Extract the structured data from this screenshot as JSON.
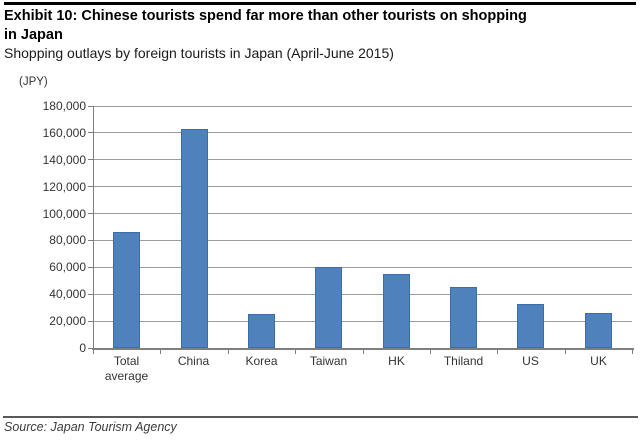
{
  "page": {
    "title_line1": "Exhibit 10: Chinese tourists spend far more than other tourists on shopping",
    "title_line2": "in Japan",
    "subtitle": "Shopping outlays by foreign tourists in Japan (April-June 2015)",
    "source": "Source: Japan Tourism Agency"
  },
  "chart_data": {
    "type": "bar",
    "title": "Exhibit 10: Chinese tourists spend far more than other tourists on shopping in Japan",
    "subtitle": "Shopping outlays by foreign tourists in Japan (April-June 2015)",
    "unit_label": "(JPY)",
    "categories": [
      "Total average",
      "China",
      "Korea",
      "Taiwan",
      "HK",
      "Thiland",
      "US",
      "UK"
    ],
    "values": [
      86000,
      163000,
      25000,
      60000,
      55000,
      45000,
      33000,
      26000
    ],
    "xlabel": "",
    "ylabel": "(JPY)",
    "ylim": [
      0,
      180000
    ],
    "ytick_step": 20000,
    "ytick_labels": [
      "0",
      "20,000",
      "40,000",
      "60,000",
      "80,000",
      "100,000",
      "120,000",
      "140,000",
      "160,000",
      "180,000"
    ],
    "grid": true,
    "legend": "none",
    "bar_color": "#4f81bd",
    "bar_border_color": "#3c6ea5",
    "gridline_color": "#9c9c9c",
    "axis_color": "#7f7f7f",
    "source": "Source: Japan Tourism Agency"
  }
}
